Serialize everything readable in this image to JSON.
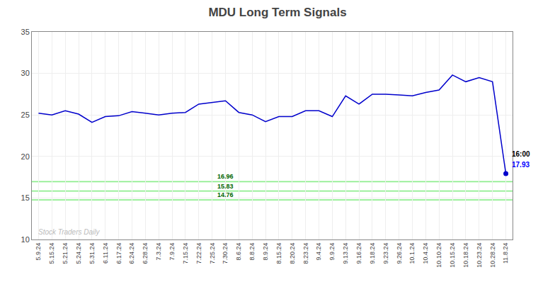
{
  "chart_data": {
    "type": "line",
    "title": "MDU Long Term Signals",
    "categories": [
      "5.9.24",
      "5.15.24",
      "5.21.24",
      "5.24.24",
      "5.31.24",
      "6.11.24",
      "6.17.24",
      "6.24.24",
      "6.28.24",
      "7.3.24",
      "7.9.24",
      "7.15.24",
      "7.22.24",
      "7.25.24",
      "7.30.24",
      "8.6.24",
      "8.8.24",
      "8.9.24",
      "8.15.24",
      "8.20.24",
      "8.23.24",
      "9.4.24",
      "9.9.24",
      "9.13.24",
      "9.16.24",
      "9.18.24",
      "9.23.24",
      "9.26.24",
      "10.1.24",
      "10.4.24",
      "10.10.24",
      "10.15.24",
      "10.18.24",
      "10.23.24",
      "10.28.24",
      "11.8.24"
    ],
    "values": [
      25.2,
      25.0,
      25.5,
      25.1,
      24.1,
      24.8,
      24.9,
      25.4,
      25.2,
      25.0,
      25.2,
      25.3,
      26.3,
      26.5,
      26.7,
      25.3,
      25.0,
      24.2,
      24.8,
      24.8,
      25.5,
      25.5,
      24.8,
      27.3,
      26.3,
      27.5,
      27.5,
      27.4,
      27.3,
      27.7,
      28.0,
      29.8,
      29.0,
      29.5,
      29.0,
      17.93
    ],
    "color": "#0000cc",
    "ylim": [
      10,
      35
    ],
    "yticks": [
      10,
      15,
      20,
      25,
      30,
      35
    ],
    "grid": true,
    "hlines": {
      "values": [
        16.96,
        15.83,
        14.76
      ],
      "color": "#90ee90",
      "label_color": "#006400"
    },
    "annotations": [
      {
        "text": "16:00",
        "color": "#000000"
      },
      {
        "text": "17.93",
        "color": "#0000ff"
      }
    ],
    "watermark": {
      "text": "Stock Traders Daily",
      "color": "#bbbbbb"
    }
  }
}
